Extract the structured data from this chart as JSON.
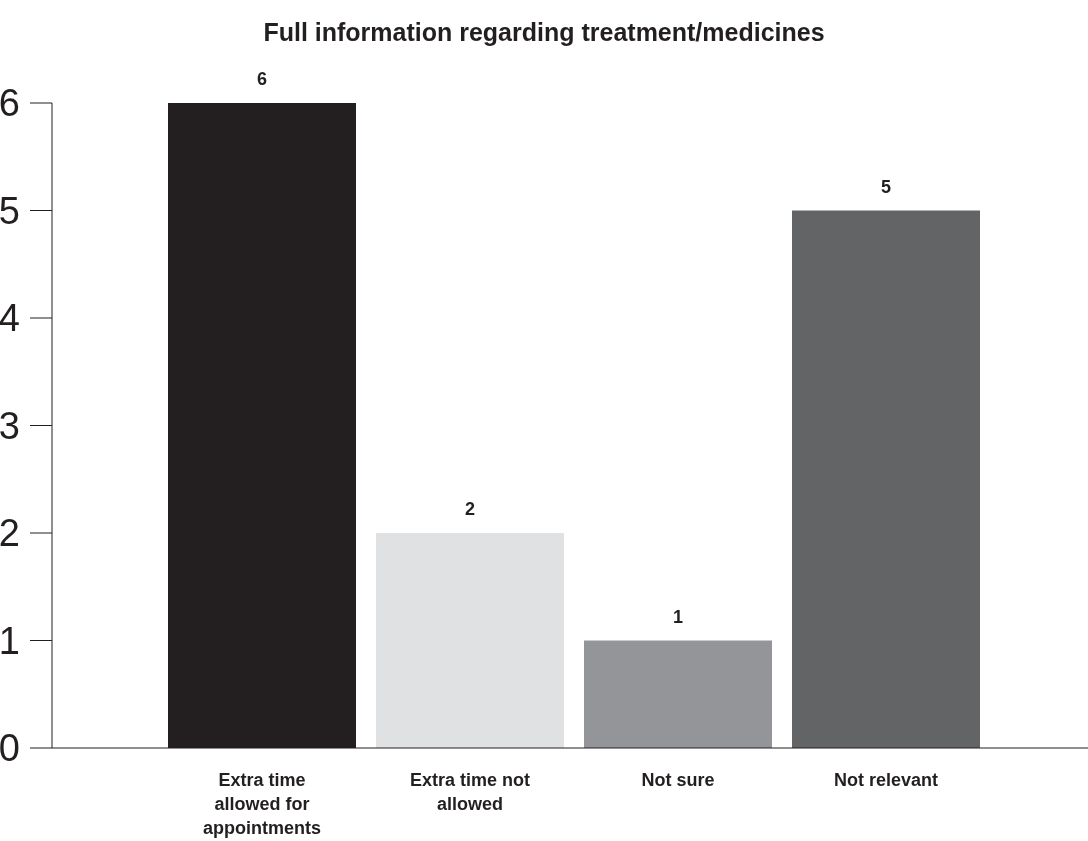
{
  "chart_data": {
    "type": "bar",
    "title": "Full information regarding treatment/medicines",
    "categories": [
      "Extra time allowed for appointments",
      "Extra time not allowed",
      "Not sure",
      "Not relevant"
    ],
    "values": [
      6,
      2,
      1,
      5
    ],
    "colors": [
      "#231f20",
      "#e0e1e3",
      "#939598",
      "#636466"
    ],
    "ylim": [
      0,
      6
    ],
    "yticks": [
      0,
      1,
      2,
      3,
      4,
      5,
      6
    ],
    "grid": false,
    "data_labels": true,
    "legend": false
  }
}
